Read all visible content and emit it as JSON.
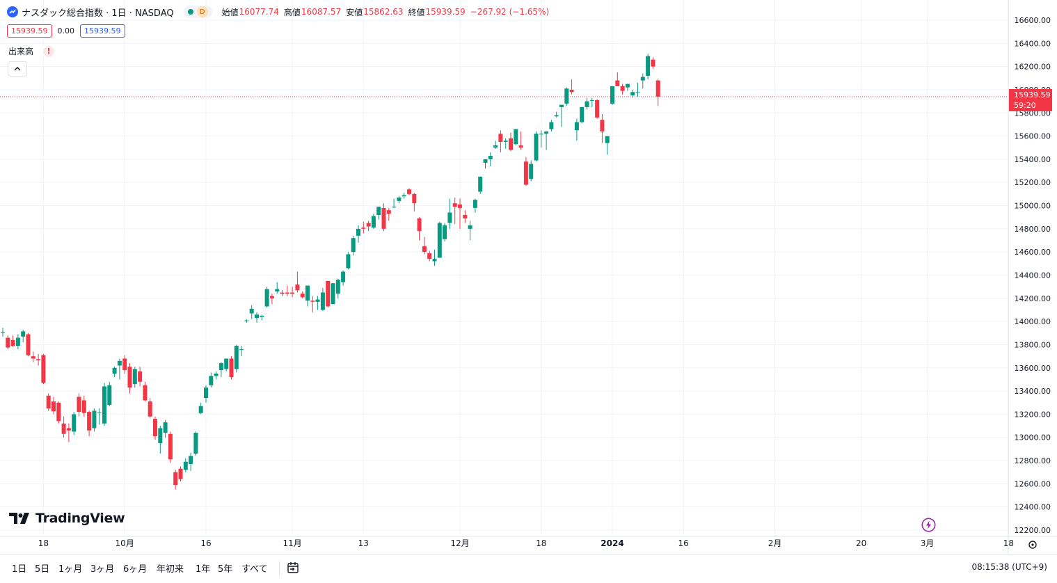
{
  "legend": {
    "title": "ナスダック総合指数 · 1日 · NASDAQ",
    "interval_badge": "D",
    "open_label": "始値",
    "open": "16077.74",
    "high_label": "高値",
    "high": "16087.57",
    "low_label": "安値",
    "low": "15862.63",
    "close_label": "終値",
    "close": "15939.59",
    "change": "−267.92 (−1.65%)"
  },
  "price_boxes": {
    "left": "15939.59",
    "middle": "0.00",
    "right": "15939.59"
  },
  "volume": {
    "label": "出来高",
    "warning": "!"
  },
  "last_price": {
    "value": "15939.59",
    "countdown": "59:20"
  },
  "logo": {
    "text": "TradingView"
  },
  "range_buttons": [
    "1日",
    "5日",
    "1ヶ月",
    "3ヶ月",
    "6ヶ月",
    "年初来",
    "1年",
    "5年",
    "すべて"
  ],
  "clock": "08:15:38 (UTC+9)",
  "colors": {
    "up": "#089981",
    "down": "#f23645",
    "accent": "#2962ff",
    "grid": "#f0f3fa"
  },
  "chart_data": {
    "type": "candlestick",
    "ylim": [
      12200,
      16600
    ],
    "y_ticks": [
      12200,
      12400,
      12600,
      12800,
      13000,
      13200,
      13400,
      13600,
      13800,
      14000,
      14200,
      14400,
      14600,
      14800,
      15000,
      15200,
      15400,
      15600,
      15800,
      16000,
      16200,
      16400,
      16600
    ],
    "x_tick_labels": [
      {
        "index": 8,
        "label": "18"
      },
      {
        "index": 24,
        "label": "10月"
      },
      {
        "index": 40,
        "label": "16"
      },
      {
        "index": 57,
        "label": "11月"
      },
      {
        "index": 71,
        "label": "13"
      },
      {
        "index": 90,
        "label": "12月"
      },
      {
        "index": 106,
        "label": "18"
      },
      {
        "index": 120,
        "label": "2024",
        "bold": true
      },
      {
        "index": 134,
        "label": "16"
      },
      {
        "index": 152,
        "label": "2月"
      },
      {
        "index": 169,
        "label": "20"
      },
      {
        "index": 182,
        "label": "3月"
      },
      {
        "index": 198,
        "label": "18"
      }
    ],
    "grid": true,
    "ohlc": [
      [
        13905,
        13945,
        13870,
        13910
      ],
      [
        13860,
        13880,
        13760,
        13775
      ],
      [
        13840,
        13880,
        13780,
        13790
      ],
      [
        13790,
        13890,
        13760,
        13860
      ],
      [
        13870,
        13930,
        13820,
        13915
      ],
      [
        13890,
        13900,
        13700,
        13710
      ],
      [
        13700,
        13740,
        13650,
        13680
      ],
      [
        13675,
        13720,
        13620,
        13665
      ],
      [
        13710,
        13720,
        13460,
        13470
      ],
      [
        13360,
        13380,
        13230,
        13250
      ],
      [
        13310,
        13350,
        13200,
        13225
      ],
      [
        13300,
        13310,
        13120,
        13140
      ],
      [
        13120,
        13180,
        13000,
        13030
      ],
      [
        13080,
        13120,
        12960,
        13060
      ],
      [
        13050,
        13220,
        13020,
        13200
      ],
      [
        13350,
        13380,
        13180,
        13220
      ],
      [
        13320,
        13360,
        13180,
        13210
      ],
      [
        13220,
        13230,
        13010,
        13060
      ],
      [
        13080,
        13250,
        13050,
        13230
      ],
      [
        13210,
        13250,
        13110,
        13215
      ],
      [
        13120,
        13470,
        13100,
        13440
      ],
      [
        13280,
        13480,
        13270,
        13450
      ],
      [
        13550,
        13610,
        13520,
        13600
      ],
      [
        13620,
        13680,
        13500,
        13660
      ],
      [
        13680,
        13710,
        13550,
        13580
      ],
      [
        13610,
        13640,
        13380,
        13430
      ],
      [
        13460,
        13610,
        13430,
        13590
      ],
      [
        13570,
        13610,
        13440,
        13480
      ],
      [
        13450,
        13480,
        13310,
        13320
      ],
      [
        13310,
        13340,
        13170,
        13180
      ],
      [
        13160,
        13180,
        12980,
        13010
      ],
      [
        12950,
        13100,
        12860,
        13080
      ],
      [
        13040,
        13150,
        13000,
        13130
      ],
      [
        13030,
        13050,
        12780,
        12810
      ],
      [
        12700,
        12720,
        12550,
        12590
      ],
      [
        12730,
        12750,
        12620,
        12640
      ],
      [
        12720,
        12820,
        12700,
        12790
      ],
      [
        12770,
        12870,
        12710,
        12840
      ],
      [
        12860,
        13050,
        12840,
        13040
      ],
      [
        13210,
        13300,
        13200,
        13270
      ],
      [
        13340,
        13450,
        13300,
        13430
      ],
      [
        13450,
        13560,
        13430,
        13530
      ],
      [
        13530,
        13570,
        13500,
        13550
      ],
      [
        13580,
        13650,
        13520,
        13640
      ],
      [
        13590,
        13680,
        13570,
        13680
      ],
      [
        13680,
        13700,
        13500,
        13520
      ],
      [
        13590,
        13800,
        13560,
        13790
      ],
      [
        13760,
        13790,
        13700,
        13760
      ],
      [
        14010,
        14020,
        13990,
        14010
      ],
      [
        14070,
        14140,
        14020,
        14110
      ],
      [
        14030,
        14080,
        13990,
        14060
      ],
      [
        14040,
        14060,
        14010,
        14050
      ],
      [
        14130,
        14300,
        14120,
        14280
      ],
      [
        14220,
        14240,
        14150,
        14200
      ],
      [
        14260,
        14340,
        14240,
        14280
      ],
      [
        14250,
        14270,
        14220,
        14240
      ],
      [
        14250,
        14310,
        14220,
        14240
      ],
      [
        14250,
        14300,
        14210,
        14240
      ],
      [
        14320,
        14430,
        14250,
        14270
      ],
      [
        14240,
        14260,
        14200,
        14210
      ],
      [
        14180,
        14310,
        14130,
        14310
      ],
      [
        14180,
        14220,
        14080,
        14170
      ],
      [
        14170,
        14220,
        14100,
        14190
      ],
      [
        14100,
        14290,
        14090,
        14250
      ],
      [
        14350,
        14350,
        14120,
        14130
      ],
      [
        14150,
        14330,
        14150,
        14330
      ],
      [
        14240,
        14370,
        14200,
        14360
      ],
      [
        14340,
        14440,
        14310,
        14430
      ],
      [
        14460,
        14600,
        14450,
        14580
      ],
      [
        14600,
        14740,
        14570,
        14720
      ],
      [
        14740,
        14830,
        14680,
        14800
      ],
      [
        14810,
        14860,
        14760,
        14800
      ],
      [
        14850,
        14870,
        14780,
        14820
      ],
      [
        14810,
        14930,
        14800,
        14910
      ],
      [
        14920,
        14990,
        14880,
        14990
      ],
      [
        14980,
        15020,
        14780,
        14800
      ],
      [
        14960,
        14980,
        14870,
        14930
      ],
      [
        14990,
        15060,
        14980,
        14990
      ],
      [
        15040,
        15080,
        15020,
        15070
      ],
      [
        15080,
        15110,
        15060,
        15090
      ],
      [
        15140,
        15150,
        15090,
        15100
      ],
      [
        15100,
        15110,
        14950,
        15020
      ],
      [
        14890,
        14900,
        14700,
        14780
      ],
      [
        14650,
        14730,
        14580,
        14600
      ],
      [
        14590,
        14610,
        14520,
        14540
      ],
      [
        14520,
        14620,
        14480,
        14540
      ],
      [
        14550,
        14860,
        14550,
        14850
      ],
      [
        14710,
        14850,
        14690,
        14830
      ],
      [
        14850,
        15060,
        14800,
        14940
      ],
      [
        15020,
        15070,
        14840,
        14990
      ],
      [
        15010,
        15060,
        14800,
        14980
      ],
      [
        14920,
        14960,
        14850,
        14890
      ],
      [
        14800,
        14870,
        14700,
        14830
      ],
      [
        14980,
        15060,
        14940,
        15050
      ],
      [
        15120,
        15250,
        15100,
        15250
      ],
      [
        15370,
        15400,
        15320,
        15400
      ],
      [
        15400,
        15460,
        15340,
        15430
      ],
      [
        15500,
        15560,
        15490,
        15520
      ],
      [
        15620,
        15650,
        15460,
        15550
      ],
      [
        15550,
        15580,
        15490,
        15560
      ],
      [
        15580,
        15630,
        15470,
        15480
      ],
      [
        15530,
        15660,
        15520,
        15660
      ],
      [
        15520,
        15640,
        15480,
        15500
      ],
      [
        15380,
        15420,
        15170,
        15180
      ],
      [
        15230,
        15390,
        15210,
        15360
      ],
      [
        15390,
        15640,
        15380,
        15620
      ],
      [
        15620,
        15650,
        15500,
        15620
      ],
      [
        15620,
        15640,
        15480,
        15640
      ],
      [
        15660,
        15740,
        15640,
        15720
      ],
      [
        15770,
        15810,
        15760,
        15780
      ],
      [
        15850,
        15870,
        15680,
        15870
      ],
      [
        15880,
        16020,
        15860,
        16010
      ],
      [
        16000,
        16090,
        15960,
        15980
      ],
      [
        15650,
        15750,
        15560,
        15720
      ],
      [
        15720,
        15850,
        15710,
        15850
      ],
      [
        15850,
        15930,
        15830,
        15900
      ],
      [
        15910,
        15930,
        15850,
        15910
      ],
      [
        15910,
        15920,
        15750,
        15760
      ],
      [
        15740,
        15790,
        15540,
        15640
      ],
      [
        15540,
        15580,
        15440,
        15600
      ],
      [
        15880,
        16020,
        15870,
        16030
      ],
      [
        16080,
        16150,
        16040,
        16030
      ],
      [
        16030,
        16050,
        15960,
        15990
      ],
      [
        16020,
        16050,
        15990,
        16050
      ],
      [
        15950,
        16000,
        15930,
        15980
      ],
      [
        15980,
        16060,
        15940,
        15980
      ],
      [
        16080,
        16140,
        16010,
        16110
      ],
      [
        16120,
        16310,
        16090,
        16290
      ],
      [
        16260,
        16280,
        16180,
        16200
      ],
      [
        16080,
        16090,
        15860,
        15940
      ]
    ],
    "spacing_bars": [
      1,
      1,
      1,
      1,
      1,
      1,
      1,
      1,
      1,
      1,
      1,
      1,
      1,
      1,
      1,
      1,
      1,
      1,
      1,
      1,
      1,
      1,
      1,
      1,
      1,
      1,
      1,
      1,
      1,
      1,
      1,
      1,
      1,
      1,
      1,
      1,
      1,
      1,
      1,
      1,
      1,
      1,
      1,
      1,
      1,
      1,
      1,
      1,
      1,
      1,
      1,
      1,
      1,
      1,
      1,
      1,
      1,
      1,
      1,
      1,
      1,
      1,
      1,
      1,
      1,
      1,
      1,
      1,
      1,
      1,
      1,
      1,
      1,
      1,
      1,
      1,
      1,
      1,
      1,
      1,
      1,
      1,
      1,
      1,
      1,
      1,
      1,
      1,
      1,
      1,
      1,
      1,
      1,
      1,
      1,
      1,
      1,
      1,
      1,
      1,
      1,
      1,
      1,
      1,
      1,
      1,
      1,
      1,
      1,
      1,
      1,
      1,
      1,
      1,
      1,
      1,
      1,
      1,
      1,
      1,
      1,
      1,
      1
    ]
  }
}
